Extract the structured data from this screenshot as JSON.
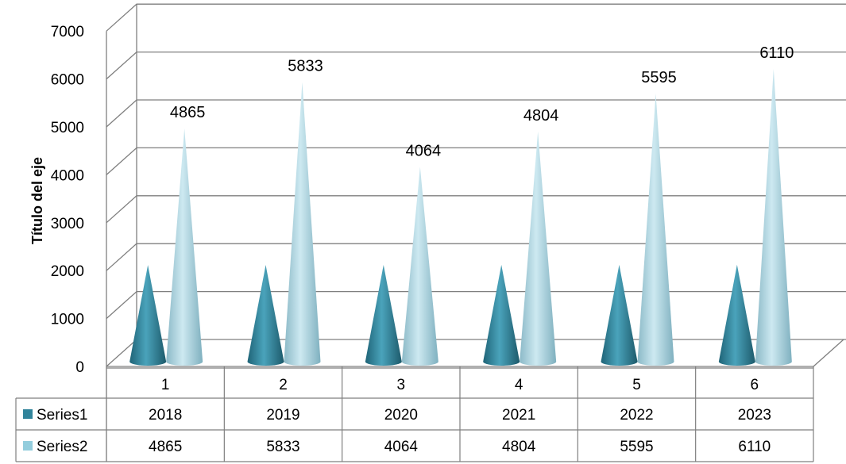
{
  "chart_data": {
    "type": "bar",
    "shape": "cone-3d",
    "categories": [
      "1",
      "2",
      "3",
      "4",
      "5",
      "6"
    ],
    "series": [
      {
        "name": "Series1",
        "values": [
          2018,
          2019,
          2020,
          2021,
          2022,
          2023
        ]
      },
      {
        "name": "Series2",
        "values": [
          4865,
          5833,
          4064,
          4804,
          5595,
          6110
        ]
      }
    ],
    "data_labels_series": "Series2",
    "ylabel": "Título del eje",
    "ylim": [
      0,
      7000
    ],
    "yticks": [
      0,
      1000,
      2000,
      3000,
      4000,
      5000,
      6000,
      7000
    ],
    "grid": true,
    "legend": "data-table"
  },
  "colors": {
    "series1": "#31849b",
    "series2": "#93cddd",
    "grid": "#7f7f7f"
  }
}
